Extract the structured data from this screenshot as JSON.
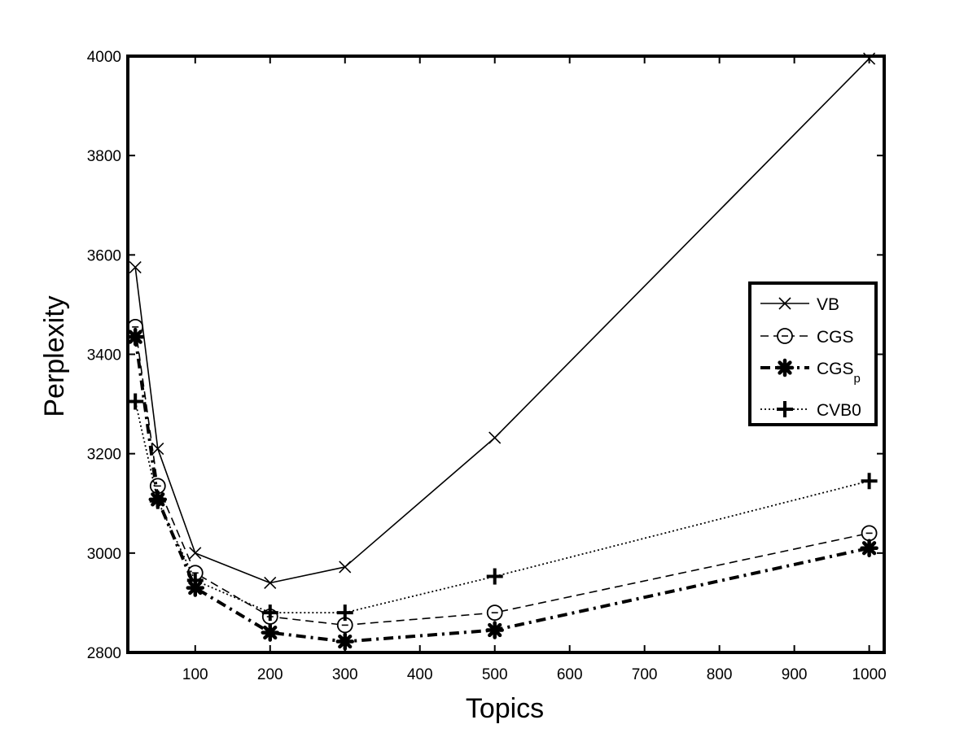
{
  "chart_data": {
    "type": "line",
    "title": "",
    "xlabel": "Topics",
    "ylabel": "Perplexity",
    "xlim": [
      10,
      1020
    ],
    "ylim": [
      2800,
      4000
    ],
    "xticks": [
      100,
      200,
      300,
      400,
      500,
      600,
      700,
      800,
      900,
      1000
    ],
    "xtick_labels": [
      "100",
      "200",
      "300",
      "400",
      "500",
      "600",
      "700",
      "800",
      "900",
      "1000"
    ],
    "yticks": [
      2800,
      3000,
      3200,
      3400,
      3600,
      3800,
      4000
    ],
    "ytick_labels": [
      "2800",
      "3000",
      "3200",
      "3400",
      "3600",
      "3800",
      "4000"
    ],
    "grid": false,
    "legend_position": "right",
    "x": [
      20,
      50,
      100,
      200,
      300,
      500,
      1000
    ],
    "series": [
      {
        "name": "VB",
        "name_sub": "",
        "marker": "x",
        "line": "solid",
        "values": [
          3575,
          3210,
          3000,
          2940,
          2972,
          3232,
          3995
        ]
      },
      {
        "name": "CGS",
        "name_sub": "",
        "marker": "circle",
        "line": "dashed",
        "values": [
          3455,
          3135,
          2960,
          2872,
          2855,
          2880,
          3040
        ]
      },
      {
        "name": "CGS",
        "name_sub": "p",
        "marker": "asterisk",
        "line": "dashdot",
        "values": [
          3435,
          3108,
          2930,
          2840,
          2822,
          2845,
          3010
        ]
      },
      {
        "name": "CVB0",
        "name_sub": "",
        "marker": "plus",
        "line": "dotted",
        "values": [
          3305,
          3105,
          2945,
          2880,
          2880,
          2953,
          3145
        ]
      }
    ]
  }
}
